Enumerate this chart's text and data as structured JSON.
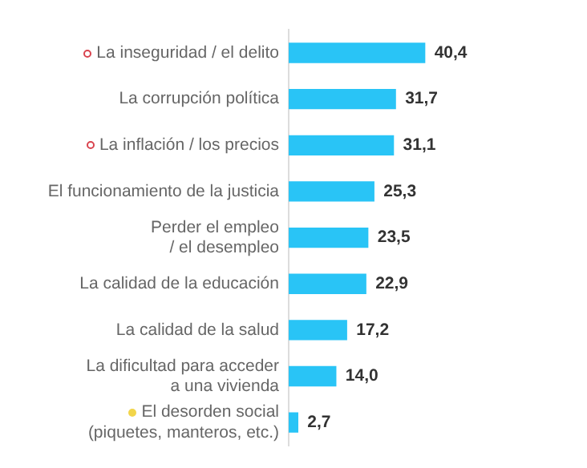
{
  "chart_data": {
    "type": "bar",
    "orientation": "horizontal",
    "categories": [
      "La inseguridad / el delito",
      "La corrupción política",
      "La inflación / los precios",
      "El funcionamiento de la justicia",
      "Perder el empleo\n/ el desempleo",
      "La calidad de la educación",
      "La calidad de la salud",
      "La dificultad para acceder\na una vivienda",
      "El desorden social\n(piquetes, manteros, etc.)"
    ],
    "values": [
      40.4,
      31.7,
      31.1,
      25.3,
      23.5,
      22.9,
      17.2,
      14.0,
      2.7
    ],
    "value_labels": [
      "40,4",
      "31,7",
      "31,1",
      "25,3",
      "23,5",
      "22,9",
      "17,2",
      "14,0",
      "2,7"
    ],
    "color": "#29c4f6",
    "grid": false,
    "legend": false,
    "tick_labels": "y"
  }
}
